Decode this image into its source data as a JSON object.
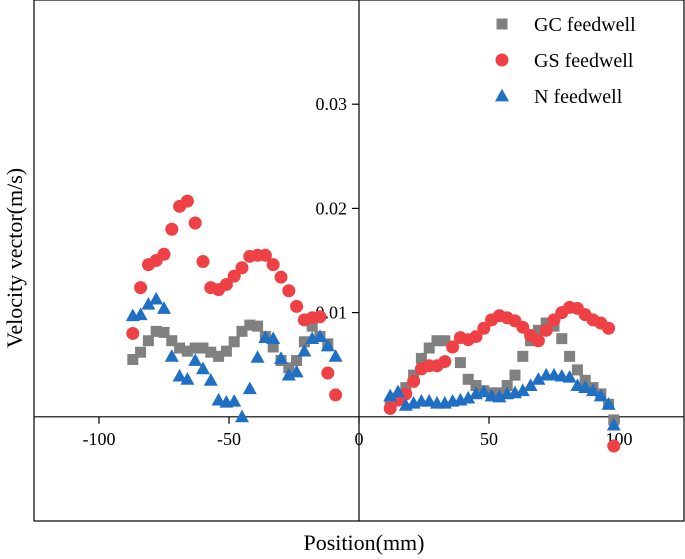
{
  "chart_data": {
    "type": "scatter",
    "xlabel": "Position(mm)",
    "ylabel": "Velocity vector(m/s)",
    "xlim": [
      -125,
      125
    ],
    "ylim": [
      -0.01,
      0.04
    ],
    "x_ticks": [
      -100,
      -50,
      0,
      50,
      100
    ],
    "x_tick_labels": [
      "-100",
      "-50",
      "0",
      "50",
      "100"
    ],
    "y_ticks": [
      0.01,
      0.02,
      0.03
    ],
    "y_tick_labels": [
      "0.01",
      "0.02",
      "0.03"
    ],
    "legend_position": "top-right",
    "series": [
      {
        "name": "GC feedwell",
        "marker": "square",
        "color": "#808080",
        "points": [
          [
            -87,
            0.0055
          ],
          [
            -84,
            0.0062
          ],
          [
            -81,
            0.0073
          ],
          [
            -78,
            0.0082
          ],
          [
            -75,
            0.0081
          ],
          [
            -72,
            0.0073
          ],
          [
            -69,
            0.0066
          ],
          [
            -66,
            0.0063
          ],
          [
            -63,
            0.0066
          ],
          [
            -60,
            0.0066
          ],
          [
            -57,
            0.0062
          ],
          [
            -54,
            0.0058
          ],
          [
            -51,
            0.0063
          ],
          [
            -48,
            0.0072
          ],
          [
            -45,
            0.0082
          ],
          [
            -42,
            0.0088
          ],
          [
            -39,
            0.0087
          ],
          [
            -36,
            0.0077
          ],
          [
            -33,
            0.0067
          ],
          [
            -30,
            0.0054
          ],
          [
            -27,
            0.0047
          ],
          [
            -24,
            0.0054
          ],
          [
            -21,
            0.0072
          ],
          [
            -18,
            0.0087
          ],
          [
            -15,
            0.0077
          ],
          [
            -12,
            0.007
          ],
          [
            12,
            0.001
          ],
          [
            15,
            0.0018
          ],
          [
            18,
            0.0028
          ],
          [
            21,
            0.004
          ],
          [
            24,
            0.0056
          ],
          [
            27,
            0.0066
          ],
          [
            30,
            0.0073
          ],
          [
            33,
            0.0073
          ],
          [
            36,
            0.0068
          ],
          [
            39,
            0.0052
          ],
          [
            42,
            0.0036
          ],
          [
            45,
            0.003
          ],
          [
            48,
            0.0025
          ],
          [
            51,
            0.0023
          ],
          [
            54,
            0.0023
          ],
          [
            57,
            0.003
          ],
          [
            60,
            0.004
          ],
          [
            63,
            0.0058
          ],
          [
            66,
            0.0073
          ],
          [
            69,
            0.0083
          ],
          [
            72,
            0.009
          ],
          [
            75,
            0.0087
          ],
          [
            78,
            0.0075
          ],
          [
            81,
            0.0058
          ],
          [
            84,
            0.0045
          ],
          [
            87,
            0.0035
          ],
          [
            90,
            0.0028
          ],
          [
            93,
            0.0022
          ],
          [
            96,
            0.0012
          ],
          [
            98,
            -0.0003
          ]
        ]
      },
      {
        "name": "GS feedwell",
        "marker": "circle",
        "color": "#ef4045",
        "points": [
          [
            -87,
            0.008
          ],
          [
            -84,
            0.0124
          ],
          [
            -81,
            0.0146
          ],
          [
            -78,
            0.015
          ],
          [
            -75,
            0.0156
          ],
          [
            -72,
            0.018
          ],
          [
            -69,
            0.0202
          ],
          [
            -66,
            0.0207
          ],
          [
            -63,
            0.0186
          ],
          [
            -60,
            0.0149
          ],
          [
            -57,
            0.0124
          ],
          [
            -54,
            0.0122
          ],
          [
            -51,
            0.0127
          ],
          [
            -48,
            0.0135
          ],
          [
            -45,
            0.0143
          ],
          [
            -42,
            0.0154
          ],
          [
            -39,
            0.0155
          ],
          [
            -36,
            0.0155
          ],
          [
            -33,
            0.0146
          ],
          [
            -30,
            0.0134
          ],
          [
            -27,
            0.0121
          ],
          [
            -24,
            0.0106
          ],
          [
            -21,
            0.0093
          ],
          [
            -18,
            0.0095
          ],
          [
            -15,
            0.0096
          ],
          [
            -12,
            0.0042
          ],
          [
            -9,
            0.0021
          ],
          [
            12,
            0.0008
          ],
          [
            15,
            0.0016
          ],
          [
            18,
            0.0022
          ],
          [
            21,
            0.0034
          ],
          [
            24,
            0.0046
          ],
          [
            27,
            0.0049
          ],
          [
            30,
            0.0049
          ],
          [
            33,
            0.0053
          ],
          [
            36,
            0.0067
          ],
          [
            39,
            0.0076
          ],
          [
            42,
            0.0074
          ],
          [
            45,
            0.0077
          ],
          [
            48,
            0.0085
          ],
          [
            51,
            0.0093
          ],
          [
            54,
            0.0097
          ],
          [
            57,
            0.0095
          ],
          [
            60,
            0.0092
          ],
          [
            63,
            0.0086
          ],
          [
            66,
            0.0078
          ],
          [
            69,
            0.0073
          ],
          [
            72,
            0.0083
          ],
          [
            75,
            0.0093
          ],
          [
            78,
            0.01
          ],
          [
            81,
            0.0105
          ],
          [
            84,
            0.0104
          ],
          [
            87,
            0.0098
          ],
          [
            90,
            0.0093
          ],
          [
            93,
            0.009
          ],
          [
            96,
            0.0085
          ],
          [
            98,
            -0.0028
          ]
        ]
      },
      {
        "name": "N feedwell",
        "marker": "triangle",
        "color": "#1f6fc5",
        "points": [
          [
            -87,
            0.0097
          ],
          [
            -84,
            0.0098
          ],
          [
            -81,
            0.0108
          ],
          [
            -78,
            0.0113
          ],
          [
            -75,
            0.0104
          ],
          [
            -72,
            0.0058
          ],
          [
            -69,
            0.0039
          ],
          [
            -66,
            0.0036
          ],
          [
            -63,
            0.0054
          ],
          [
            -60,
            0.0046
          ],
          [
            -57,
            0.0035
          ],
          [
            -54,
            0.0016
          ],
          [
            -51,
            0.0014
          ],
          [
            -48,
            0.0015
          ],
          [
            -45,
            0.0
          ],
          [
            -42,
            0.0027
          ],
          [
            -39,
            0.0057
          ],
          [
            -36,
            0.0076
          ],
          [
            -33,
            0.0075
          ],
          [
            -30,
            0.0056
          ],
          [
            -27,
            0.004
          ],
          [
            -24,
            0.0043
          ],
          [
            -21,
            0.0063
          ],
          [
            -18,
            0.0075
          ],
          [
            -15,
            0.0077
          ],
          [
            -12,
            0.0068
          ],
          [
            -9,
            0.0058
          ],
          [
            12,
            0.002
          ],
          [
            15,
            0.0024
          ],
          [
            18,
            0.0011
          ],
          [
            21,
            0.0013
          ],
          [
            24,
            0.0015
          ],
          [
            27,
            0.0015
          ],
          [
            30,
            0.0013
          ],
          [
            33,
            0.0013
          ],
          [
            36,
            0.0015
          ],
          [
            39,
            0.0016
          ],
          [
            42,
            0.0018
          ],
          [
            45,
            0.0022
          ],
          [
            48,
            0.0024
          ],
          [
            51,
            0.002
          ],
          [
            54,
            0.0019
          ],
          [
            57,
            0.0022
          ],
          [
            60,
            0.0023
          ],
          [
            63,
            0.0025
          ],
          [
            66,
            0.003
          ],
          [
            69,
            0.0036
          ],
          [
            72,
            0.004
          ],
          [
            75,
            0.004
          ],
          [
            78,
            0.0039
          ],
          [
            81,
            0.0038
          ],
          [
            84,
            0.003
          ],
          [
            87,
            0.0028
          ],
          [
            90,
            0.0025
          ],
          [
            93,
            0.002
          ],
          [
            96,
            0.0012
          ],
          [
            98,
            -0.0008
          ]
        ]
      }
    ]
  }
}
